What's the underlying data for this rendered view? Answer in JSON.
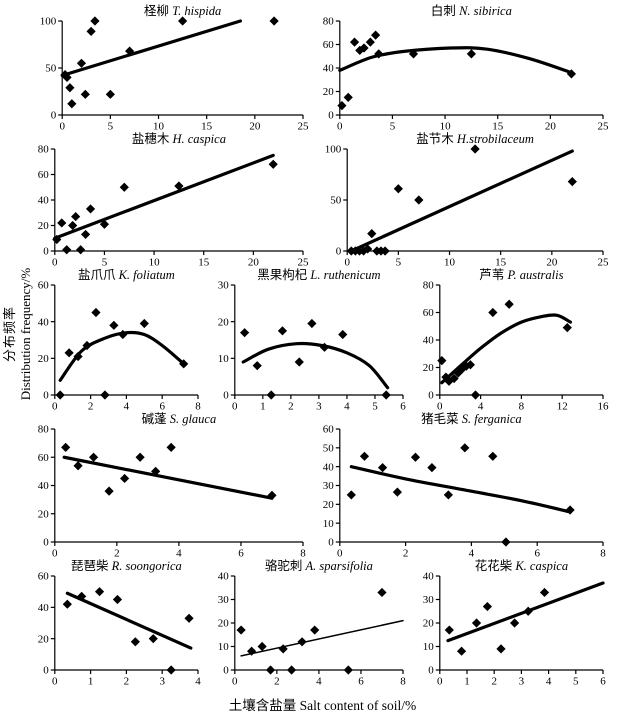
{
  "figure": {
    "background": "#ffffff",
    "ink": "#000000",
    "ylabel_line1": "分布频率",
    "ylabel_line2": "Distribution frequency/%",
    "xlabel": "土壤含盐量 Salt content of soil/%"
  },
  "chart_data": [
    {
      "name": "t-hispida",
      "type": "scatter",
      "title_cn": "柽柳",
      "title_latin": "T. hispida",
      "xlim": [
        0,
        25
      ],
      "xticks": [
        0,
        5,
        10,
        15,
        20,
        25
      ],
      "ylim": [
        0,
        100
      ],
      "yticks": [
        0,
        50,
        100
      ],
      "points": [
        [
          0.3,
          43
        ],
        [
          0.5,
          40
        ],
        [
          0.8,
          29
        ],
        [
          1,
          12
        ],
        [
          2,
          55
        ],
        [
          2.4,
          22
        ],
        [
          3,
          89
        ],
        [
          3.4,
          100
        ],
        [
          5,
          22
        ],
        [
          7,
          68
        ],
        [
          12.5,
          100
        ],
        [
          22,
          100
        ]
      ],
      "trend": {
        "shape": "linear",
        "thickness": "thick",
        "points": [
          [
            0,
            42
          ],
          [
            18.5,
            100
          ]
        ]
      }
    },
    {
      "name": "n-sibirica",
      "type": "scatter",
      "title_cn": "白刺",
      "title_latin": "N. sibirica",
      "xlim": [
        0,
        25
      ],
      "xticks": [
        0,
        5,
        10,
        15,
        20,
        25
      ],
      "ylim": [
        0,
        80
      ],
      "yticks": [
        0,
        20,
        40,
        60,
        80
      ],
      "points": [
        [
          0.2,
          8
        ],
        [
          0.8,
          15
        ],
        [
          1.4,
          62
        ],
        [
          1.9,
          55
        ],
        [
          2.3,
          57
        ],
        [
          2.9,
          62
        ],
        [
          3.4,
          68
        ],
        [
          3.7,
          52
        ],
        [
          7,
          52
        ],
        [
          12.5,
          52
        ],
        [
          22,
          35
        ]
      ],
      "trend": {
        "shape": "curve",
        "thickness": "thick",
        "points": [
          [
            0,
            38
          ],
          [
            3,
            49
          ],
          [
            6,
            54
          ],
          [
            10.5,
            57
          ],
          [
            14,
            56
          ],
          [
            18,
            48
          ],
          [
            22,
            36
          ]
        ]
      }
    },
    {
      "name": "h-caspica",
      "type": "scatter",
      "title_cn": "盐穗木",
      "title_latin": "H. caspica",
      "xlim": [
        0,
        25
      ],
      "xticks": [
        0,
        5,
        10,
        15,
        20,
        25
      ],
      "ylim": [
        0,
        80
      ],
      "yticks": [
        0,
        20,
        40,
        60,
        80
      ],
      "points": [
        [
          0.2,
          9
        ],
        [
          0.7,
          22
        ],
        [
          1.2,
          1
        ],
        [
          1.8,
          20
        ],
        [
          2.1,
          27
        ],
        [
          2.6,
          1
        ],
        [
          3.1,
          13
        ],
        [
          3.6,
          33
        ],
        [
          5,
          21
        ],
        [
          7,
          50
        ],
        [
          12.5,
          51
        ],
        [
          22,
          68
        ]
      ],
      "trend": {
        "shape": "linear",
        "thickness": "thick",
        "points": [
          [
            0,
            10
          ],
          [
            22,
            75
          ]
        ]
      }
    },
    {
      "name": "h-strobilaceum",
      "type": "scatter",
      "title_cn": "盐节木",
      "title_latin": "H.strobilaceum",
      "xlim": [
        0,
        25
      ],
      "xticks": [
        0,
        5,
        10,
        15,
        20,
        25
      ],
      "ylim": [
        0,
        100
      ],
      "yticks": [
        0,
        50,
        100
      ],
      "points": [
        [
          0.4,
          0
        ],
        [
          0.8,
          0
        ],
        [
          1.2,
          0
        ],
        [
          1.6,
          0
        ],
        [
          2,
          2
        ],
        [
          2.4,
          17
        ],
        [
          2.9,
          0
        ],
        [
          3.3,
          0
        ],
        [
          3.7,
          0
        ],
        [
          5,
          61
        ],
        [
          7,
          50
        ],
        [
          12.5,
          100
        ],
        [
          22,
          68
        ]
      ],
      "trend": {
        "shape": "linear",
        "thickness": "thick",
        "points": [
          [
            0.4,
            0
          ],
          [
            22,
            98
          ]
        ]
      }
    },
    {
      "name": "k-foliatum",
      "type": "scatter",
      "title_cn": "盐爪爪",
      "title_latin": "K. foliatum",
      "xlim": [
        0,
        8
      ],
      "xticks": [
        0,
        2,
        4,
        6,
        8
      ],
      "ylim": [
        0,
        60
      ],
      "yticks": [
        0,
        20,
        40,
        60
      ],
      "points": [
        [
          0.3,
          0
        ],
        [
          0.8,
          23
        ],
        [
          1.3,
          21
        ],
        [
          1.8,
          27
        ],
        [
          2.3,
          45
        ],
        [
          2.8,
          0
        ],
        [
          3.3,
          38
        ],
        [
          3.8,
          33
        ],
        [
          5,
          39
        ],
        [
          7.2,
          17
        ]
      ],
      "trend": {
        "shape": "curve",
        "thickness": "thick",
        "points": [
          [
            0.3,
            8
          ],
          [
            1.5,
            24
          ],
          [
            2.8,
            31
          ],
          [
            4,
            34
          ],
          [
            5,
            33
          ],
          [
            6,
            27
          ],
          [
            7.2,
            17
          ]
        ]
      }
    },
    {
      "name": "l-ruthenicum",
      "type": "scatter",
      "title_cn": "黑果枸杞",
      "title_latin": "L. ruthenicum",
      "xlim": [
        0,
        6
      ],
      "xticks": [
        0,
        1,
        2,
        3,
        4,
        5,
        6
      ],
      "ylim": [
        0,
        30
      ],
      "yticks": [
        0,
        10,
        20,
        30
      ],
      "points": [
        [
          0.35,
          17
        ],
        [
          0.8,
          8
        ],
        [
          1.3,
          0
        ],
        [
          1.7,
          17.5
        ],
        [
          2.3,
          9
        ],
        [
          2.75,
          19.5
        ],
        [
          3.2,
          13
        ],
        [
          3.85,
          16.5
        ],
        [
          5.4,
          0
        ]
      ],
      "trend": {
        "shape": "curve",
        "thickness": "thick",
        "points": [
          [
            0.3,
            9
          ],
          [
            1.2,
            12.5
          ],
          [
            2.2,
            14
          ],
          [
            3.1,
            13.5
          ],
          [
            4,
            11.5
          ],
          [
            4.8,
            8
          ],
          [
            5.45,
            2
          ]
        ]
      }
    },
    {
      "name": "p-australis",
      "type": "scatter",
      "title_cn": "芦苇",
      "title_latin": "P. australis",
      "xlim": [
        0,
        16
      ],
      "xticks": [
        0,
        4,
        8,
        12,
        16
      ],
      "ylim": [
        0,
        80
      ],
      "yticks": [
        0,
        20,
        40,
        60,
        80
      ],
      "points": [
        [
          0.2,
          25
        ],
        [
          0.6,
          13
        ],
        [
          0.9,
          10
        ],
        [
          1.4,
          12
        ],
        [
          1.8,
          16
        ],
        [
          2.2,
          19
        ],
        [
          2.6,
          21
        ],
        [
          3,
          22
        ],
        [
          3.5,
          0
        ],
        [
          5.2,
          60
        ],
        [
          6.8,
          66
        ],
        [
          12.5,
          49
        ]
      ],
      "trend": {
        "shape": "curve",
        "thickness": "thick",
        "points": [
          [
            0.2,
            9
          ],
          [
            2,
            21
          ],
          [
            4,
            34
          ],
          [
            6,
            45
          ],
          [
            8,
            53
          ],
          [
            10,
            57
          ],
          [
            11.5,
            58
          ],
          [
            12.8,
            53
          ]
        ]
      }
    },
    {
      "name": "s-glauca",
      "type": "scatter",
      "title_cn": "碱蓬",
      "title_latin": "S. glauca",
      "xlim": [
        0,
        8
      ],
      "xticks": [
        0,
        2,
        4,
        6,
        8
      ],
      "ylim": [
        0,
        80
      ],
      "yticks": [
        0,
        20,
        40,
        60,
        80
      ],
      "points": [
        [
          0.35,
          67
        ],
        [
          0.75,
          54
        ],
        [
          1.25,
          60
        ],
        [
          1.75,
          36
        ],
        [
          2.25,
          45
        ],
        [
          2.75,
          60
        ],
        [
          3.25,
          50
        ],
        [
          3.75,
          67
        ],
        [
          7,
          33
        ]
      ],
      "trend": {
        "shape": "linear",
        "thickness": "thick",
        "points": [
          [
            0.3,
            60
          ],
          [
            7,
            31
          ]
        ]
      }
    },
    {
      "name": "s-ferganica",
      "type": "scatter",
      "title_cn": "猪毛菜",
      "title_latin": "S. ferganica",
      "xlim": [
        0,
        8
      ],
      "xticks": [
        0,
        2,
        4,
        6,
        8
      ],
      "ylim": [
        0,
        60
      ],
      "yticks": [
        0,
        10,
        20,
        30,
        40,
        50,
        60
      ],
      "points": [
        [
          0.35,
          25
        ],
        [
          0.75,
          45.5
        ],
        [
          1.3,
          39.5
        ],
        [
          1.75,
          26.5
        ],
        [
          2.3,
          45
        ],
        [
          2.8,
          39.5
        ],
        [
          3.3,
          25
        ],
        [
          3.8,
          50
        ],
        [
          4.65,
          45.5
        ],
        [
          5.05,
          0
        ],
        [
          7,
          17
        ]
      ],
      "trend": {
        "shape": "curve",
        "thickness": "thick",
        "points": [
          [
            0.35,
            40
          ],
          [
            2,
            33.5
          ],
          [
            4,
            27
          ],
          [
            5.5,
            22
          ],
          [
            7,
            16
          ]
        ]
      }
    },
    {
      "name": "r-soongorica",
      "type": "scatter",
      "title_cn": "琵琶柴",
      "title_latin": "R. soongorica",
      "xlim": [
        0,
        4
      ],
      "xticks": [
        0,
        1,
        2,
        3,
        4
      ],
      "ylim": [
        0,
        60
      ],
      "yticks": [
        0,
        20,
        40,
        60
      ],
      "points": [
        [
          0.35,
          42
        ],
        [
          0.75,
          47
        ],
        [
          1.25,
          50
        ],
        [
          1.75,
          45
        ],
        [
          2.25,
          18
        ],
        [
          2.75,
          20
        ],
        [
          3.25,
          0
        ],
        [
          3.75,
          33
        ]
      ],
      "trend": {
        "shape": "linear",
        "thickness": "thick",
        "points": [
          [
            0.35,
            49
          ],
          [
            3.8,
            14
          ]
        ]
      }
    },
    {
      "name": "a-sparsifolia",
      "type": "scatter",
      "title_cn": "骆驼刺",
      "title_latin": "A. sparsifolia",
      "xlim": [
        0,
        8
      ],
      "xticks": [
        0,
        2,
        4,
        6,
        8
      ],
      "ylim": [
        0,
        40
      ],
      "yticks": [
        0,
        10,
        20,
        30,
        40
      ],
      "points": [
        [
          0.3,
          17
        ],
        [
          0.8,
          8
        ],
        [
          1.3,
          10
        ],
        [
          1.7,
          0
        ],
        [
          2.3,
          9
        ],
        [
          2.7,
          0
        ],
        [
          3.2,
          12
        ],
        [
          3.8,
          17
        ],
        [
          5.4,
          0
        ],
        [
          7,
          33
        ]
      ],
      "trend": {
        "shape": "linear",
        "thickness": "thin",
        "points": [
          [
            0.3,
            6
          ],
          [
            8,
            21
          ]
        ]
      }
    },
    {
      "name": "k-caspica",
      "type": "scatter",
      "title_cn": "花花柴",
      "title_latin": "K. caspica",
      "xlim": [
        0,
        6
      ],
      "xticks": [
        0,
        1,
        2,
        3,
        4,
        5,
        6
      ],
      "ylim": [
        0,
        40
      ],
      "yticks": [
        0,
        10,
        20,
        30,
        40
      ],
      "points": [
        [
          0.35,
          17
        ],
        [
          0.8,
          8
        ],
        [
          1.35,
          20
        ],
        [
          1.75,
          27
        ],
        [
          2.25,
          9
        ],
        [
          2.75,
          20
        ],
        [
          3.25,
          25
        ],
        [
          3.85,
          33
        ]
      ],
      "trend": {
        "shape": "linear",
        "thickness": "thick",
        "points": [
          [
            0.3,
            12.5
          ],
          [
            6,
            37
          ]
        ]
      }
    }
  ]
}
